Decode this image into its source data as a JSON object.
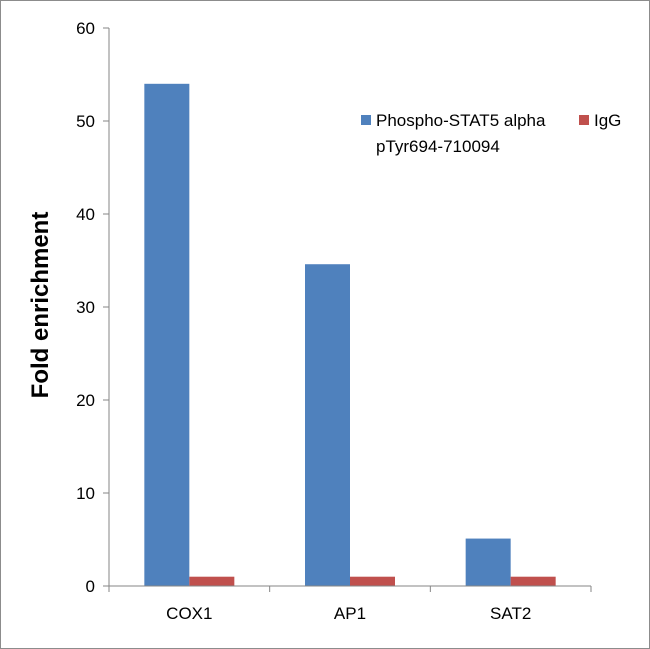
{
  "chart_data": {
    "type": "bar",
    "title": "",
    "xlabel": "",
    "ylabel": "Fold enrichment",
    "ylim": [
      0,
      60
    ],
    "yticks": [
      0,
      10,
      20,
      30,
      40,
      50,
      60
    ],
    "grid": false,
    "legend_position": "top-right",
    "categories": [
      "COX1",
      "AP1",
      "SAT2"
    ],
    "series": [
      {
        "name": "Phospho-STAT5 alpha pTyr694-710094",
        "legend_lines": [
          "Phospho-STAT5 alpha",
          "pTyr694-710094"
        ],
        "color": "#4f81bd",
        "values": [
          54,
          34.6,
          5.1
        ]
      },
      {
        "name": "IgG",
        "legend_lines": [
          "IgG"
        ],
        "color": "#c0504d",
        "values": [
          1,
          1,
          1
        ]
      }
    ]
  }
}
